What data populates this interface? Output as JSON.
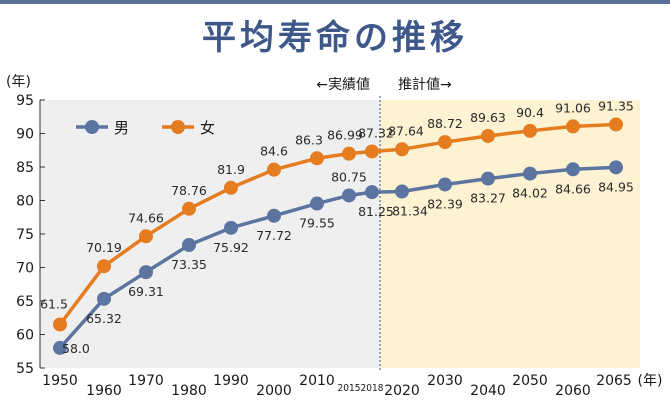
{
  "header": {
    "title": "平均寿命の推移"
  },
  "chart_data": {
    "type": "line",
    "title": "平均寿命の推移",
    "ylabel": "(年)",
    "xlabel": "(年)",
    "ylim": [
      55,
      95
    ],
    "yticks": [
      "55",
      "60",
      "65",
      "70",
      "75",
      "80",
      "85",
      "90",
      "95"
    ],
    "xtick_labels": [
      "1950",
      "1960",
      "1970",
      "1980",
      "1990",
      "2000",
      "2010",
      "2015",
      "2018",
      "2020",
      "2030",
      "2040",
      "2050",
      "2060",
      "2065"
    ],
    "periods": {
      "actual": "←実績値",
      "projected": "推計値→"
    },
    "x": [
      1950,
      1960,
      1970,
      1980,
      1990,
      2000,
      2010,
      2015,
      2018,
      2020,
      2030,
      2040,
      2050,
      2060,
      2065
    ],
    "series": [
      {
        "name": "男",
        "color": "#5b74a0",
        "values": [
          58.0,
          65.32,
          69.31,
          73.35,
          75.92,
          77.72,
          79.55,
          80.75,
          81.25,
          81.34,
          82.39,
          83.27,
          84.02,
          84.66,
          84.95
        ],
        "labels": [
          "58.0",
          "65.32",
          "69.31",
          "73.35",
          "75.92",
          "77.72",
          "79.55",
          "80.75",
          "81.25",
          "81.34",
          "82.39",
          "83.27",
          "84.02",
          "84.66",
          "84.95"
        ]
      },
      {
        "name": "女",
        "color": "#e57c20",
        "values": [
          61.5,
          70.19,
          74.66,
          78.76,
          81.9,
          84.6,
          86.3,
          86.99,
          87.32,
          87.64,
          88.72,
          89.63,
          90.4,
          91.06,
          91.35
        ],
        "labels": [
          "61.5",
          "70.19",
          "74.66",
          "78.76",
          "81.9",
          "84.6",
          "86.3",
          "86.99",
          "87.32",
          "87.64",
          "88.72",
          "89.63",
          "90.4",
          "91.06",
          "91.35"
        ]
      }
    ],
    "legend": "top-left",
    "grid": false,
    "colors": {
      "actual_bg": "#efefef",
      "projected_bg": "#fdf3d3",
      "divider": "#5a6f97"
    }
  }
}
